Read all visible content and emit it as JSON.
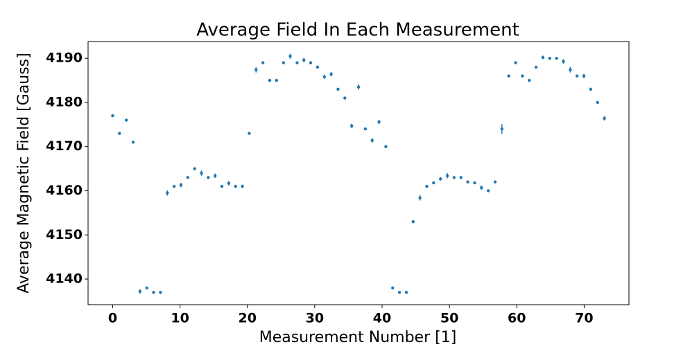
{
  "chart_data": {
    "type": "errorbar",
    "title": "Average Field In Each Measurement",
    "xlabel": "Measurement Number [1]",
    "ylabel": "Average Magnetic Field [Gauss]",
    "x": [
      0,
      1.01,
      2.03,
      3.04,
      4.06,
      5.07,
      6.08,
      7.1,
      8.11,
      9.13,
      10.14,
      11.15,
      12.17,
      13.18,
      14.19,
      15.21,
      16.22,
      17.24,
      18.25,
      19.26,
      20.28,
      21.29,
      22.31,
      23.32,
      24.33,
      25.35,
      26.36,
      27.38,
      28.39,
      29.4,
      30.42,
      31.43,
      32.44,
      33.46,
      34.47,
      35.49,
      36.5,
      37.51,
      38.53,
      39.54,
      40.56,
      41.57,
      42.58,
      43.6,
      44.61,
      45.63,
      46.64,
      47.65,
      48.67,
      49.68,
      50.69,
      51.71,
      52.72,
      53.74,
      54.75,
      55.76,
      56.78,
      57.79,
      58.81,
      59.82,
      60.83,
      61.85,
      62.86,
      63.88,
      64.89,
      65.9,
      66.92,
      67.93,
      68.94,
      69.96,
      70.97,
      71.99,
      73
    ],
    "values": [
      4177,
      4173,
      4176,
      4171,
      4137.2,
      4138,
      4137,
      4137,
      4159.5,
      4161,
      4161.3,
      4163,
      4165,
      4164,
      4163,
      4163.4,
      4161,
      4161.7,
      4161,
      4161,
      4173,
      4187.4,
      4189,
      4185,
      4185,
      4189,
      4190.5,
      4189,
      4189.6,
      4189,
      4188,
      4185.8,
      4186.4,
      4183,
      4181,
      4174.7,
      4183.5,
      4174,
      4171.4,
      4175.6,
      4170,
      4138,
      4137,
      4137,
      4153,
      4158.4,
      4161,
      4161.8,
      4162.7,
      4163.4,
      4163,
      4163,
      4162,
      4161.8,
      4160.7,
      4160,
      4162,
      4174,
      4186,
      4189,
      4186,
      4185,
      4188,
      4190.2,
      4190,
      4190,
      4189.3,
      4187.4,
      4186,
      4186,
      4183,
      4180,
      4176.4
    ],
    "errors": [
      0.3,
      0.3,
      0.3,
      0.3,
      0.5,
      0.3,
      0.3,
      0.3,
      0.6,
      0.3,
      0.5,
      0.3,
      0.3,
      0.6,
      0.3,
      0.5,
      0.3,
      0.5,
      0.3,
      0.4,
      0.3,
      0.6,
      0.3,
      0.3,
      0.3,
      0.3,
      0.6,
      0.3,
      0.5,
      0.3,
      0.3,
      0.5,
      0.5,
      0.3,
      0.3,
      0.5,
      0.6,
      0.3,
      0.5,
      0.5,
      0.3,
      0.3,
      0.3,
      0.3,
      0.3,
      0.6,
      0.3,
      0.3,
      0.4,
      0.6,
      0.3,
      0.3,
      0.3,
      0.3,
      0.5,
      0.3,
      0.3,
      1.1,
      0.3,
      0.3,
      0.3,
      0.3,
      0.3,
      0.4,
      0.3,
      0.3,
      0.5,
      0.6,
      0.3,
      0.5,
      0.3,
      0.3,
      0.5
    ],
    "color": "#1f77b4",
    "xlim": [
      -3.65,
      76.65
    ],
    "xticks": [
      0,
      10,
      20,
      30,
      40,
      50,
      60,
      70
    ],
    "ylim": [
      4134.2,
      4193.8
    ],
    "yticks": [
      4140,
      4150,
      4160,
      4170,
      4180,
      4190
    ],
    "grid": false
  }
}
